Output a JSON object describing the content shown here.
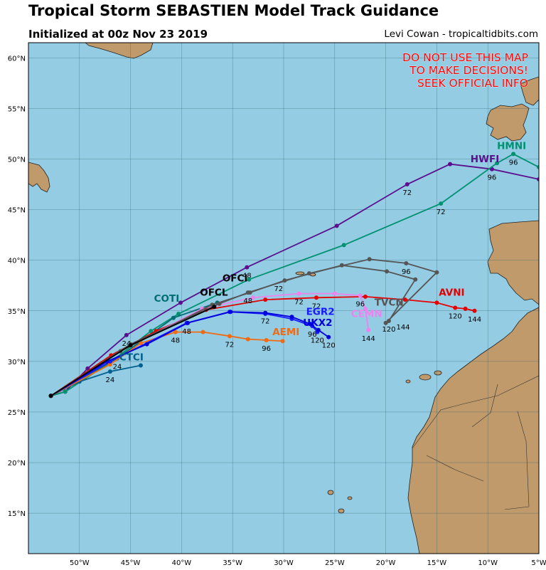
{
  "header": {
    "title": "Tropical Storm SEBASTIEN Model Track Guidance",
    "subtitle": "Initialized at 00z Nov 23 2019",
    "credit": "Levi Cowan - tropicaltidbits.com"
  },
  "warning": {
    "lines": [
      "DO NOT USE THIS MAP",
      "TO MAKE DECISIONS!",
      "SEEK OFFICIAL INFO"
    ],
    "color": "#ff0000"
  },
  "colors": {
    "ocean": "#94cde3",
    "land": "#c19a6b",
    "grid": "#2f5f6f"
  },
  "axes": {
    "lon_ticks": [
      "50°W",
      "45°W",
      "40°W",
      "35°W",
      "30°W",
      "25°W",
      "20°W",
      "15°W",
      "10°W",
      "5°W"
    ],
    "lat_ticks": [
      "15°N",
      "20°N",
      "25°N",
      "30°N",
      "35°N",
      "40°N",
      "45°N",
      "50°N",
      "55°N",
      "60°N"
    ],
    "lon_range": [
      -55,
      -5
    ],
    "lat_range": [
      11,
      61.5
    ]
  },
  "chart_data": {
    "type": "map",
    "tracks": [
      {
        "name": "HWFI",
        "color": "#5b0f8e",
        "points": [
          [
            -52.8,
            26.6
          ],
          [
            -51.4,
            27
          ],
          [
            -49.2,
            29.3
          ],
          [
            -45.4,
            32.6
          ],
          [
            -40.1,
            35.8
          ],
          [
            -33.6,
            39.3
          ],
          [
            -24.8,
            43.4
          ],
          [
            -17.9,
            47.5
          ],
          [
            -13.7,
            49.5
          ],
          [
            -9.6,
            49
          ],
          [
            -5,
            48
          ]
        ],
        "labels": [
          {
            "t": "24",
            "lon": -45.4,
            "lat": 32.6
          },
          {
            "t": "48",
            "lon": -33.6,
            "lat": 39.3
          },
          {
            "t": "72",
            "lon": -17.9,
            "lat": 47.5
          },
          {
            "t": "96",
            "lon": -9.6,
            "lat": 49
          }
        ]
      },
      {
        "name": "HMNI",
        "color": "#009270",
        "points": [
          [
            -52.8,
            26.6
          ],
          [
            -51.4,
            27
          ],
          [
            -47,
            29.9
          ],
          [
            -43,
            33
          ],
          [
            -40.3,
            34.7
          ],
          [
            -33.4,
            38.1
          ],
          [
            -24.1,
            41.5
          ],
          [
            -14.6,
            45.6
          ],
          [
            -9.1,
            49.6
          ],
          [
            -7.5,
            50.5
          ],
          [
            -5,
            49.2
          ]
        ],
        "labels": [
          {
            "t": "72",
            "lon": -14.6,
            "lat": 45.6
          },
          {
            "t": "96",
            "lon": -7.5,
            "lat": 50.5
          }
        ]
      },
      {
        "name": "CTCI",
        "color": "#005f8c",
        "points": [
          [
            -52.8,
            26.6
          ],
          [
            -50,
            28
          ],
          [
            -47,
            29
          ],
          [
            -44,
            29.6
          ]
        ],
        "labels": [
          {
            "t": "24",
            "lon": -47,
            "lat": 29
          }
        ]
      },
      {
        "name": "COTI",
        "color": "#006d75",
        "points": [
          [
            -52.8,
            26.6
          ],
          [
            -46.3,
            30.3
          ],
          [
            -40.8,
            34.3
          ],
          [
            -36.5,
            35.8
          ]
        ],
        "labels": [
          {
            "t": "24",
            "lon": -46.3,
            "lat": 30.3
          }
        ]
      },
      {
        "name": "AEMI",
        "color": "#f26a11",
        "points": [
          [
            -52.8,
            26.6
          ],
          [
            -47,
            29.7
          ],
          [
            -44,
            31.8
          ],
          [
            -40.6,
            32.9
          ],
          [
            -37.9,
            32.9
          ],
          [
            -35.3,
            32.5
          ],
          [
            -33.5,
            32.2
          ],
          [
            -31.7,
            32.1
          ],
          [
            -30.1,
            32
          ]
        ],
        "labels": [
          {
            "t": "48",
            "lon": -40.6,
            "lat": 32.9
          },
          {
            "t": "72",
            "lon": -35.3,
            "lat": 32.5
          },
          {
            "t": "96",
            "lon": -31.7,
            "lat": 32.1
          }
        ]
      },
      {
        "name": "EGR2",
        "color": "#1a1aff",
        "points": [
          [
            -52.8,
            26.6
          ],
          [
            -47,
            30
          ],
          [
            -39.5,
            33.8
          ],
          [
            -35.3,
            34.9
          ],
          [
            -31.8,
            34.7
          ],
          [
            -29.2,
            34.2
          ],
          [
            -27.2,
            33.5
          ],
          [
            -26.7,
            32.9
          ]
        ],
        "labels": [
          {
            "t": "48",
            "lon": -39.5,
            "lat": 33.8
          },
          {
            "t": "96",
            "lon": -27.2,
            "lat": 33.5
          },
          {
            "t": "120",
            "lon": -26.7,
            "lat": 32.9
          }
        ]
      },
      {
        "name": "UKX2",
        "color": "#0000dd",
        "points": [
          [
            -52.8,
            26.6
          ],
          [
            -47.3,
            30
          ],
          [
            -43.4,
            31.7
          ],
          [
            -39.4,
            33.8
          ],
          [
            -35.2,
            34.9
          ],
          [
            -31.8,
            34.8
          ],
          [
            -29.2,
            34.4
          ],
          [
            -27.4,
            33.7
          ],
          [
            -26.6,
            33.1
          ],
          [
            -25.6,
            32.4
          ]
        ],
        "labels": [
          {
            "t": "72",
            "lon": -31.8,
            "lat": 34.8
          },
          {
            "t": "120",
            "lon": -25.6,
            "lat": 32.4
          }
        ]
      },
      {
        "name": "AVNI",
        "color": "#e60000",
        "points": [
          [
            -52.8,
            26.6
          ],
          [
            -46.9,
            30.6
          ],
          [
            -42.5,
            33
          ],
          [
            -37.6,
            35.1
          ],
          [
            -31.8,
            36.1
          ],
          [
            -26.8,
            36.3
          ],
          [
            -22,
            36.4
          ],
          [
            -18.1,
            36.1
          ],
          [
            -15,
            35.8
          ],
          [
            -13.2,
            35.3
          ],
          [
            -12.2,
            35.2
          ],
          [
            -11.3,
            35
          ]
        ],
        "labels": [
          {
            "t": "72",
            "lon": -26.8,
            "lat": 36.3
          },
          {
            "t": "120",
            "lon": -13.2,
            "lat": 35.3
          },
          {
            "t": "144",
            "lon": -11.3,
            "lat": 35
          }
        ]
      },
      {
        "name": "CEMN",
        "color": "#ee82ee",
        "points": [
          [
            -52.8,
            26.6
          ],
          [
            -46,
            31
          ],
          [
            -38,
            35.2
          ],
          [
            -33,
            36.3
          ],
          [
            -28.5,
            36.7
          ],
          [
            -25,
            36.7
          ],
          [
            -22.5,
            36.5
          ],
          [
            -22,
            35.2
          ],
          [
            -21.7,
            33.1
          ]
        ],
        "labels": [
          {
            "t": "72",
            "lon": -28.5,
            "lat": 36.7
          },
          {
            "t": "96",
            "lon": -22.5,
            "lat": 36.5
          },
          {
            "t": "144",
            "lon": -21.7,
            "lat": 33.1
          }
        ]
      },
      {
        "name": "TVCN",
        "color": "#555555",
        "points": [
          [
            -52.8,
            26.6
          ],
          [
            -46,
            31
          ],
          [
            -37,
            35.6
          ],
          [
            -33.3,
            36.8
          ],
          [
            -29.9,
            38
          ],
          [
            -24.3,
            39.5
          ],
          [
            -19.9,
            38.9
          ],
          [
            -17.1,
            38.1
          ],
          [
            -19.7,
            34
          ]
        ],
        "labels": [
          {
            "t": "72",
            "lon": -30.5,
            "lat": 38
          },
          {
            "t": "120",
            "lon": -19.7,
            "lat": 34
          },
          {
            "t": "144",
            "lon": -18.3,
            "lat": 34.2
          }
        ]
      },
      {
        "name": "OFCI",
        "color": "#555555",
        "points": [
          [
            -52.8,
            26.6
          ],
          [
            -45,
            31.7
          ],
          [
            -36.3,
            35.7
          ],
          [
            -33.5,
            36.8
          ],
          [
            -27.5,
            38.7
          ],
          [
            -21.6,
            40.1
          ],
          [
            -18,
            39.7
          ],
          [
            -15,
            38.8
          ],
          [
            -20,
            33.8
          ]
        ],
        "labels": [
          {
            "t": "48",
            "lon": -33.5,
            "lat": 36.8
          },
          {
            "t": "96",
            "lon": -18,
            "lat": 39.7
          }
        ]
      },
      {
        "name": "OFCL",
        "color": "#000000",
        "points": [
          [
            -52.8,
            26.6
          ],
          [
            -45,
            31.6
          ],
          [
            -36.8,
            35.4
          ]
        ],
        "labels": []
      }
    ]
  },
  "model_labels": [
    {
      "text": "HMNI",
      "color": "#009270",
      "lon": -9.1,
      "lat": 51
    },
    {
      "text": "HWFI",
      "color": "#5b0f8e",
      "lon": -11.7,
      "lat": 49.7
    },
    {
      "text": "OFCI",
      "color": "#000000",
      "lon": -36,
      "lat": 37.9
    },
    {
      "text": "OFCL",
      "color": "#000000",
      "lon": -38.2,
      "lat": 36.5
    },
    {
      "text": "COTI",
      "color": "#006d75",
      "lon": -42.7,
      "lat": 35.9
    },
    {
      "text": "AVNI",
      "color": "#e60000",
      "lon": -14.8,
      "lat": 36.5
    },
    {
      "text": "EGR2",
      "color": "#1a1aff",
      "lon": -27.8,
      "lat": 34.6
    },
    {
      "text": "UKX2",
      "color": "#0000dd",
      "lon": -28.1,
      "lat": 33.5
    },
    {
      "text": "AEMI",
      "color": "#f26a11",
      "lon": -31.1,
      "lat": 32.6
    },
    {
      "text": "CEMN",
      "color": "#ee82ee",
      "lon": -23.4,
      "lat": 34.4
    },
    {
      "text": "TVCN",
      "color": "#555555",
      "lon": -21.1,
      "lat": 35.5
    },
    {
      "text": "CTCI",
      "color": "#005f8c",
      "lon": -46.1,
      "lat": 30.1
    }
  ]
}
